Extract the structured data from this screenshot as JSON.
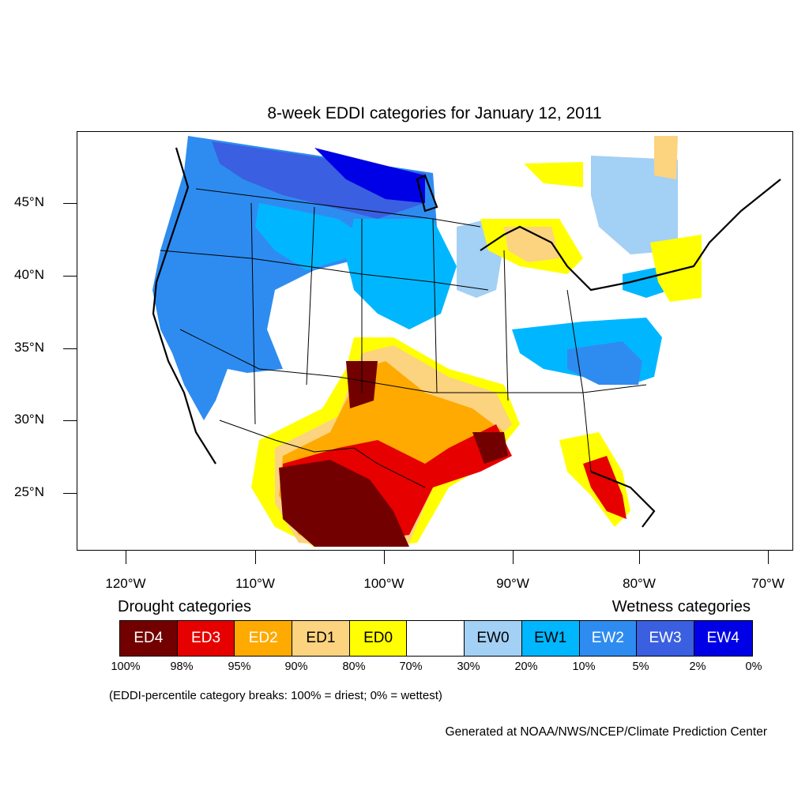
{
  "title": "8-week EDDI categories for January 12, 2011",
  "lat_labels": [
    "45°N",
    "40°N",
    "35°N",
    "30°N",
    "25°N"
  ],
  "lon_labels": [
    "120°W",
    "110°W",
    "100°W",
    "90°W",
    "80°W",
    "70°W"
  ],
  "legend": {
    "drought_heading": "Drought categories",
    "wetness_heading": "Wetness categories",
    "categories": [
      {
        "label": "ED4",
        "color": "#730000",
        "text_color": "#ffffff"
      },
      {
        "label": "ED3",
        "color": "#e60000",
        "text_color": "#ffffff"
      },
      {
        "label": "ED2",
        "color": "#ffaa00",
        "text_color": "#ffffff"
      },
      {
        "label": "ED1",
        "color": "#fcd37f",
        "text_color": "#000000"
      },
      {
        "label": "ED0",
        "color": "#ffff00",
        "text_color": "#000000"
      },
      {
        "label": "",
        "color": "#ffffff",
        "text_color": "#000000"
      },
      {
        "label": "EW0",
        "color": "#a3d0f5",
        "text_color": "#000000"
      },
      {
        "label": "EW1",
        "color": "#00b7ff",
        "text_color": "#000000"
      },
      {
        "label": "EW2",
        "color": "#2e8cf0",
        "text_color": "#ffffff"
      },
      {
        "label": "EW3",
        "color": "#3a5fe0",
        "text_color": "#ffffff"
      },
      {
        "label": "EW4",
        "color": "#0000e6",
        "text_color": "#ffffff"
      }
    ],
    "percent_labels": [
      "100%",
      "98%",
      "95%",
      "90%",
      "80%",
      "70%",
      "30%",
      "20%",
      "10%",
      "5%",
      "2%",
      "0%"
    ]
  },
  "footnote": "(EDDI-percentile category breaks: 100% = driest; 0% = wettest)",
  "credit": "Generated at NOAA/NWS/NCEP/Climate Prediction Center"
}
